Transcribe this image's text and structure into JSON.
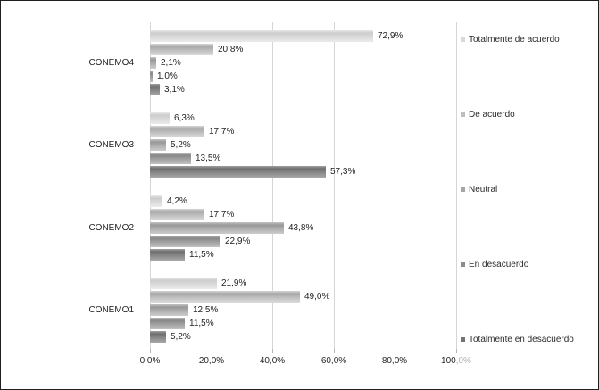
{
  "chart_data": {
    "type": "bar",
    "orientation": "horizontal",
    "title": "",
    "xlabel": "",
    "ylabel": "",
    "grid": true,
    "legend_position": "right",
    "categories": [
      "CONEMO4",
      "CONEMO3",
      "CONEMO2",
      "CONEMO1"
    ],
    "series": [
      {
        "name": "Totalmente de acuerdo",
        "values": [
          72.9,
          6.3,
          4.2,
          21.9
        ],
        "labels": [
          "72,9%",
          "6,3%",
          "4,2%",
          "21,9%"
        ],
        "colors": {
          "edge": "#e8e8e8",
          "dark": "#cdcdcd",
          "bottom": "#ebebeb",
          "legend": "#d9d9d9"
        }
      },
      {
        "name": "De acuerdo",
        "values": [
          20.8,
          17.7,
          17.7,
          49.0
        ],
        "labels": [
          "20,8%",
          "17,7%",
          "17,7%",
          "49,0%"
        ],
        "colors": {
          "edge": "#d6d6d6",
          "dark": "#a8a8a8",
          "bottom": "#dcdcdc",
          "legend": "#bfbfbf"
        }
      },
      {
        "name": "Neutral",
        "values": [
          2.1,
          5.2,
          43.8,
          12.5
        ],
        "labels": [
          "2,1%",
          "5,2%",
          "43,8%",
          "12,5%"
        ],
        "colors": {
          "edge": "#c4c4c4",
          "dark": "#989898",
          "bottom": "#cccccc",
          "legend": "#a6a6a6"
        }
      },
      {
        "name": "En desacuerdo",
        "values": [
          1.0,
          13.5,
          22.9,
          11.5
        ],
        "labels": [
          "1,0%",
          "13,5%",
          "22,9%",
          "11,5%"
        ],
        "colors": {
          "edge": "#b5b5b5",
          "dark": "#888888",
          "bottom": "#c2c2c2",
          "legend": "#8c8c8c"
        }
      },
      {
        "name": "Totalmente en desacuerdo",
        "values": [
          3.1,
          57.3,
          11.5,
          5.2
        ],
        "labels": [
          "3,1%",
          "57,3%",
          "11,5%",
          "5,2%"
        ],
        "colors": {
          "edge": "#a0a0a0",
          "dark": "#6e6e6e",
          "bottom": "#a8a8a8",
          "legend": "#737373"
        }
      }
    ],
    "x_axis": {
      "min": 0,
      "max": 100,
      "step": 20,
      "tick_labels": [
        "0,0%",
        "20,0%",
        "40,0%",
        "60,0%",
        "80,0%",
        "100,0%"
      ],
      "last_label_dark_part": "100",
      "last_label_muted_part": ",0%"
    }
  }
}
